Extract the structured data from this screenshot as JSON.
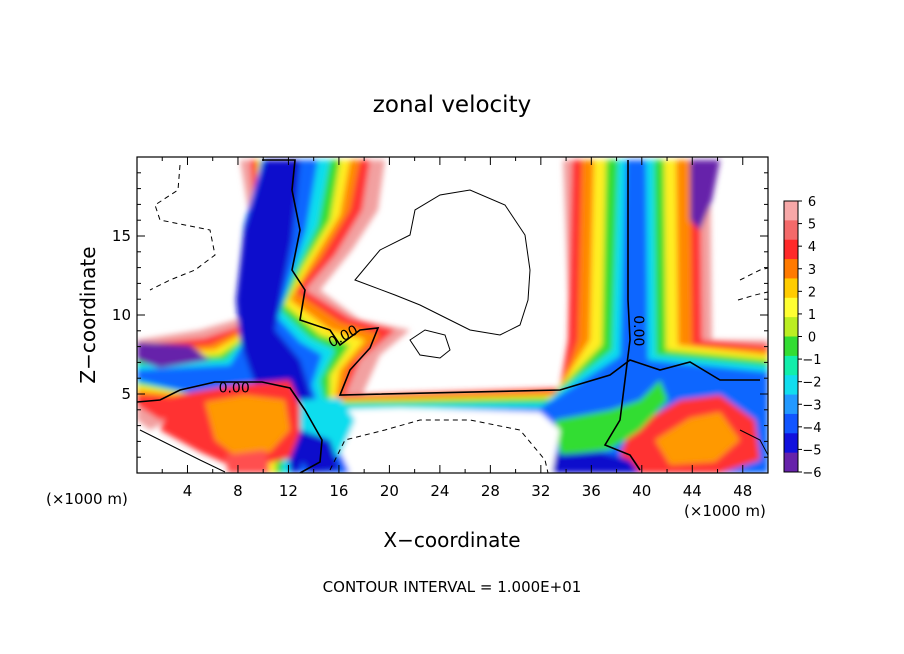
{
  "chart_data": {
    "type": "heatmap",
    "title": "zonal velocity",
    "xlabel": "X−coordinate",
    "ylabel": "Z−coordinate",
    "x_unit_left": "(×1000 m)",
    "x_unit_right": "(×1000 m)",
    "xlim": [
      0,
      50
    ],
    "ylim": [
      0,
      20
    ],
    "x_ticks": [
      4,
      8,
      12,
      16,
      20,
      24,
      28,
      32,
      36,
      40,
      44,
      48
    ],
    "y_ticks": [
      5,
      10,
      15
    ],
    "footer": "CONTOUR INTERVAL =  1.000E+01",
    "contour_labels": [
      {
        "text": "0.00",
        "x": 7.7,
        "y": 5.1,
        "rotate": 0
      },
      {
        "text": "0.00",
        "x": 16.5,
        "y": 8.4,
        "rotate": -28
      },
      {
        "text": "0.00",
        "x": 39.4,
        "y": 9.0,
        "rotate": 90
      }
    ],
    "colorbar": {
      "levels": [
        "6",
        "5",
        "4",
        "3",
        "2",
        "1",
        "0",
        "−1",
        "−2",
        "−3",
        "−4",
        "−5",
        "−6"
      ],
      "colors": [
        "#f7a8a8",
        "#f46a6a",
        "#ff2a2a",
        "#ff7a00",
        "#ffcc00",
        "#ffff33",
        "#bbee22",
        "#33dd33",
        "#11eeaa",
        "#11ddee",
        "#2299ff",
        "#1155ff",
        "#1111dd",
        "#6622aa"
      ]
    }
  }
}
